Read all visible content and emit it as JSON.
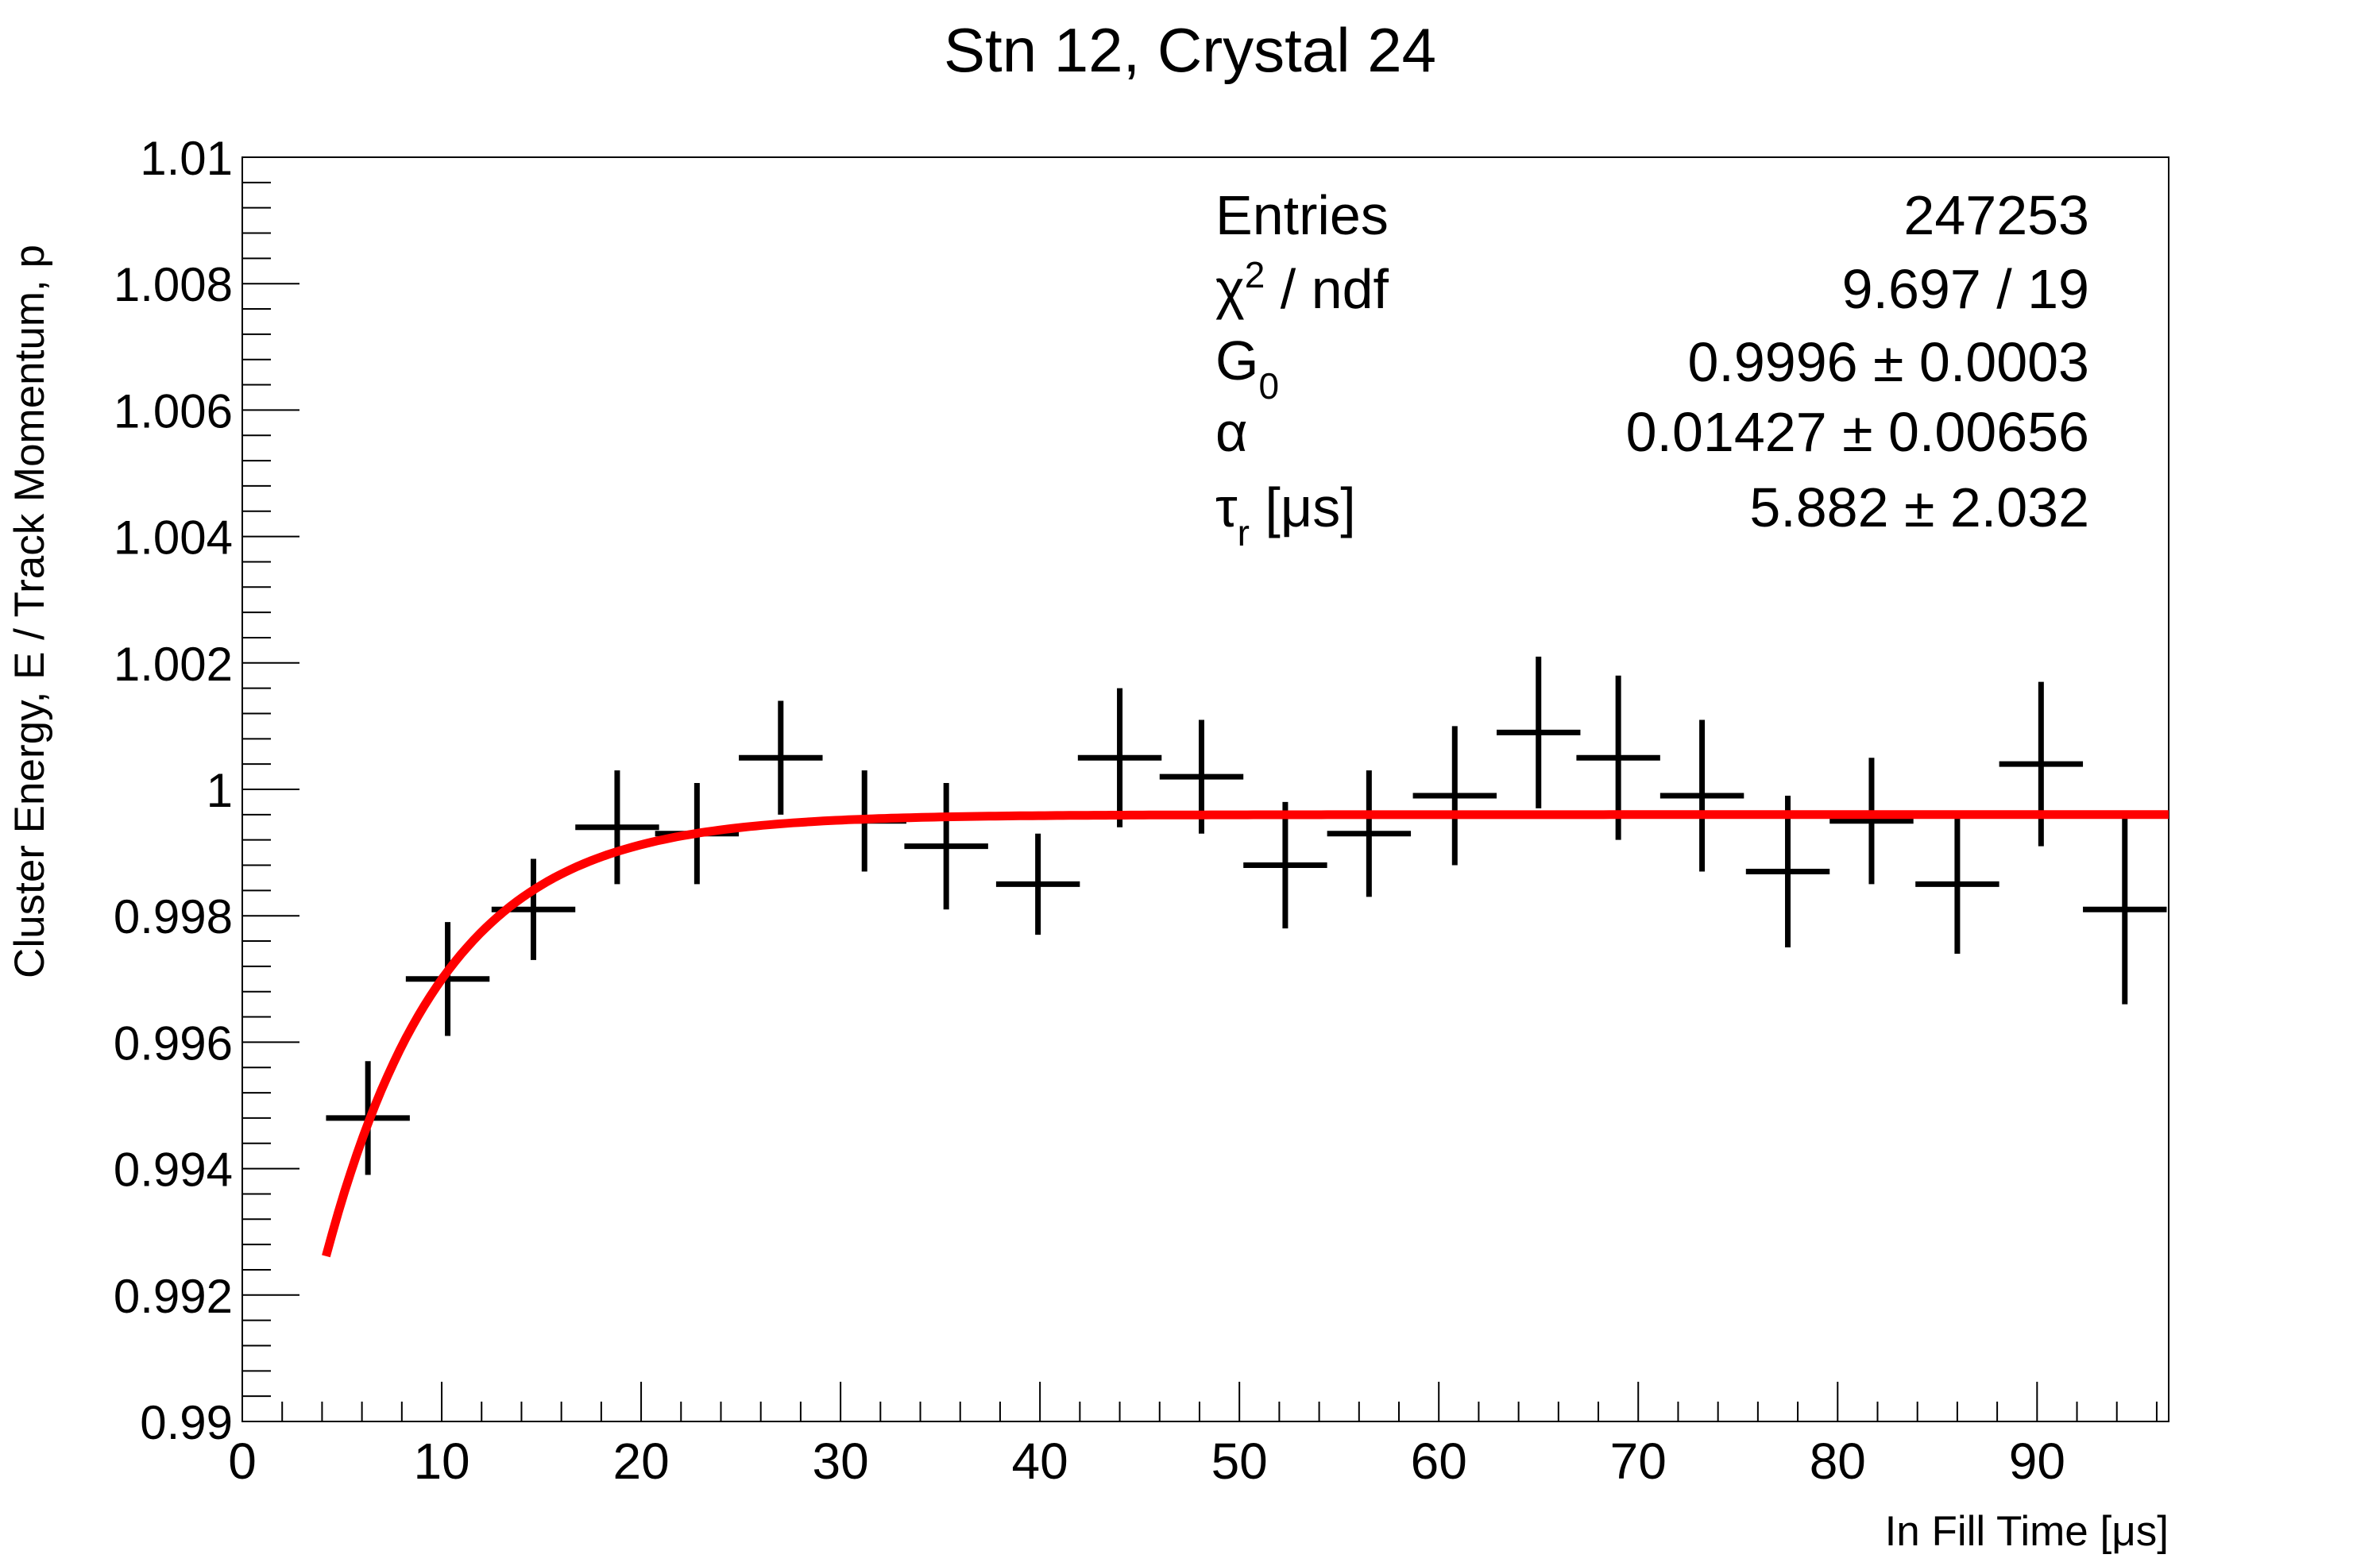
{
  "chart_data": {
    "type": "scatter",
    "title": "Stn 12, Crystal 24",
    "xlabel": "In Fill Time [μs]",
    "ylabel": "Cluster Energy, E / Track Momentum, p",
    "xlim": [
      0,
      96.6
    ],
    "ylim": [
      0.99,
      1.01
    ],
    "x_ticks": [
      "0",
      "10",
      "20",
      "30",
      "40",
      "50",
      "60",
      "70",
      "80",
      "90"
    ],
    "y_ticks": [
      "0.99",
      "0.992",
      "0.994",
      "0.996",
      "0.998",
      "1",
      "1.002",
      "1.004",
      "1.006",
      "1.008",
      "1.01"
    ],
    "grid": false,
    "series": [
      {
        "type": "errorbar",
        "color": "#000000",
        "x": [
          6.3,
          10.3,
          14.6,
          18.8,
          22.8,
          27.0,
          31.2,
          35.3,
          39.9,
          44.0,
          48.1,
          52.3,
          56.5,
          60.8,
          65.0,
          69.0,
          73.2,
          77.5,
          81.7,
          86.0,
          90.2,
          94.4
        ],
        "y": [
          0.9948,
          0.997,
          0.9981,
          0.9994,
          0.9993,
          1.0005,
          0.9995,
          0.9991,
          0.9985,
          1.0005,
          1.0002,
          0.9988,
          0.9993,
          0.9999,
          1.0009,
          1.0005,
          0.9999,
          0.9987,
          0.9995,
          0.9985,
          1.0004,
          0.9981
        ],
        "xerr": 2.1,
        "yerr": [
          0.0009,
          0.0009,
          0.0008,
          0.0009,
          0.0008,
          0.0009,
          0.0008,
          0.001,
          0.0008,
          0.0011,
          0.0009,
          0.001,
          0.001,
          0.0011,
          0.0012,
          0.0013,
          0.0012,
          0.0012,
          0.001,
          0.0011,
          0.0013,
          0.0015
        ]
      },
      {
        "type": "line",
        "color": "#ff0000",
        "model": "G0 * (1 - alpha * exp(-t / tau_r))",
        "x_range": [
          4.2,
          96.6
        ],
        "params": {
          "G0": 0.9996,
          "alpha": 0.01427,
          "tau_r": 5.882
        }
      }
    ],
    "stats_box": {
      "position": "top-right",
      "rows": [
        {
          "label": "Entries",
          "value": "247253"
        },
        {
          "label": "χ",
          "label_sup": "2",
          "label_rest": " / ndf",
          "value": "9.697 / 19"
        },
        {
          "label": "G",
          "label_sub": "0",
          "value": "0.9996 ± 0.0003"
        },
        {
          "label": "α",
          "value": "0.01427 ± 0.00656"
        },
        {
          "label": "τ",
          "label_sub": "r",
          "label_rest": " [μs]",
          "value": "5.882 ± 2.032"
        }
      ]
    }
  }
}
